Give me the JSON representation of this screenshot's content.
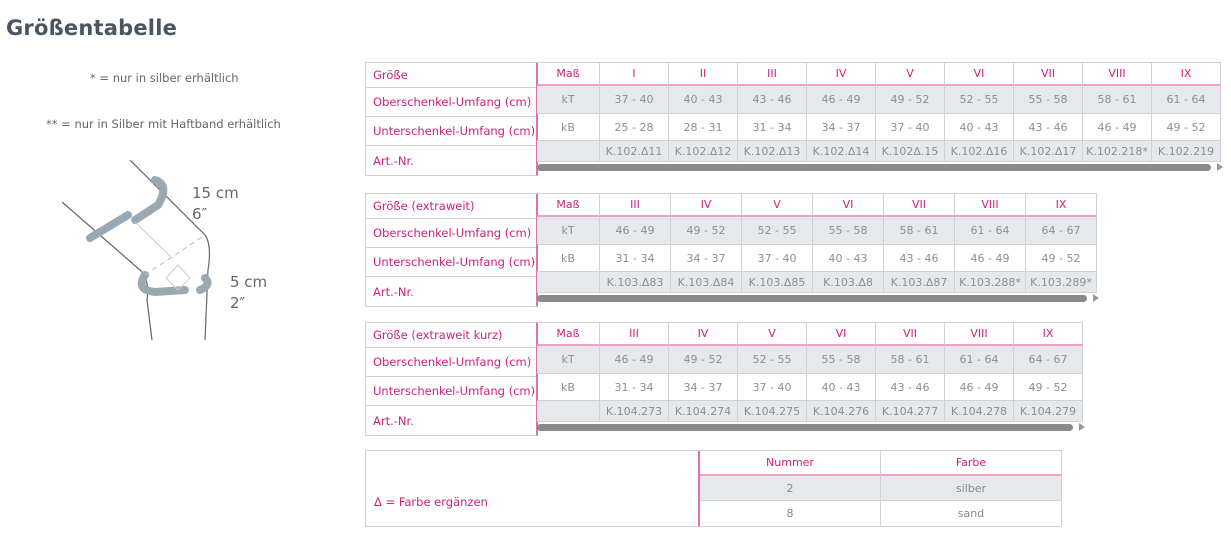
{
  "page_title": "Größentabelle",
  "notes": [
    "* = nur in silber erhältlich",
    "** = nur in Silber mit Haftband erhältlich"
  ],
  "illustration": {
    "upper_cm": "15 cm",
    "upper_in": "6″",
    "lower_cm": "5 cm",
    "lower_in": "2″"
  },
  "colors": {
    "accent": "#d0207a",
    "shade": "#e6e9ec"
  },
  "tables": [
    {
      "labels": [
        "Größe",
        "Oberschenkel-Umfang (cm)",
        "Unterschenkel-Umfang (cm)",
        "Art.-Nr."
      ],
      "mass": [
        "Maß",
        "kT",
        "kB",
        ""
      ],
      "columns": [
        [
          "I",
          "37 - 40",
          "25 - 28",
          "K.102.Δ11"
        ],
        [
          "II",
          "40 - 43",
          "28 - 31",
          "K.102.Δ12"
        ],
        [
          "III",
          "43 - 46",
          "31 - 34",
          "K.102.Δ13"
        ],
        [
          "IV",
          "46 - 49",
          "34 - 37",
          "K.102.Δ14"
        ],
        [
          "V",
          "49 - 52",
          "37 - 40",
          "K.102Δ.15"
        ],
        [
          "VI",
          "52 - 55",
          "40 - 43",
          "K.102.Δ16"
        ],
        [
          "VII",
          "55 - 58",
          "43 - 46",
          "K.102.Δ17"
        ],
        [
          "VIII",
          "58 - 61",
          "46 - 49",
          "K.102.218*"
        ],
        [
          "IX",
          "61 - 64",
          "49 - 52",
          "K.102.219"
        ]
      ]
    },
    {
      "labels": [
        "Größe (extraweit)",
        "Oberschenkel-Umfang (cm)",
        "Unterschenkel-Umfang (cm)",
        "Art.-Nr."
      ],
      "mass": [
        "Maß",
        "kT",
        "kB",
        ""
      ],
      "columns": [
        [
          "III",
          "46 - 49",
          "31 - 34",
          "K.103.Δ83"
        ],
        [
          "IV",
          "49 - 52",
          "34 - 37",
          "K.103.Δ84"
        ],
        [
          "V",
          "52 - 55",
          "37 - 40",
          "K.103.Δ85"
        ],
        [
          "VI",
          "55 - 58",
          "40 - 43",
          "K.103.Δ8"
        ],
        [
          "VII",
          "58 - 61",
          "43 - 46",
          "K.103.Δ87"
        ],
        [
          "VIII",
          "61 - 64",
          "46 - 49",
          "K.103.288*"
        ],
        [
          "IX",
          "64 - 67",
          "49 - 52",
          "K.103.289*"
        ]
      ]
    },
    {
      "labels": [
        "Größe (extraweit kurz)",
        "Oberschenkel-Umfang (cm)",
        "Unterschenkel-Umfang (cm)",
        "Art.-Nr."
      ],
      "mass": [
        "Maß",
        "kT",
        "kB",
        ""
      ],
      "columns": [
        [
          "III",
          "46 - 49",
          "31 - 34",
          "K.104.273"
        ],
        [
          "IV",
          "49 - 52",
          "34 - 37",
          "K.104.274"
        ],
        [
          "V",
          "52 - 55",
          "37 - 40",
          "K.104.275"
        ],
        [
          "VI",
          "55 - 58",
          "40 - 43",
          "K.104.276"
        ],
        [
          "VII",
          "58 - 61",
          "43 - 46",
          "K.104.277"
        ],
        [
          "VIII",
          "61 - 64",
          "46 - 49",
          "K.104.278"
        ],
        [
          "IX",
          "64 - 67",
          "49 - 52",
          "K.104.279"
        ]
      ]
    }
  ],
  "legend": {
    "label": "Δ = Farbe ergänzen",
    "headers": [
      "Nummer",
      "Farbe"
    ],
    "rows": [
      [
        "2",
        "silber"
      ],
      [
        "8",
        "sand"
      ]
    ]
  }
}
